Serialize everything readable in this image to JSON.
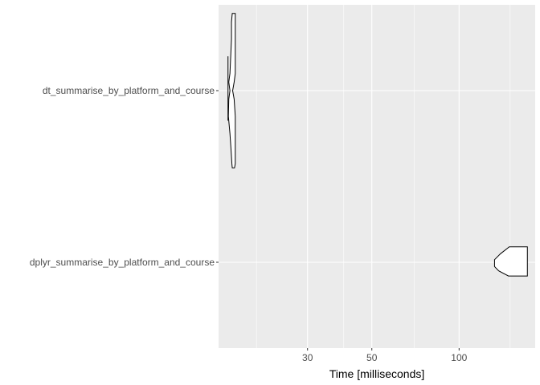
{
  "chart_data": {
    "type": "violin",
    "orientation": "horizontal",
    "title": "",
    "xlabel": "Time [milliseconds]",
    "ylabel": "",
    "x_scale": "log10",
    "x_range": [
      14.8,
      183
    ],
    "x_ticks": [
      30,
      50,
      100
    ],
    "x_ticklabels": [
      "30",
      "50",
      "100"
    ],
    "x_minor_ticks": [
      20,
      40,
      70,
      150
    ],
    "grid": true,
    "legend": "none",
    "panel_background": "#ebebeb",
    "gridline_color": "#ffffff",
    "outline_color": "#000000",
    "categories": [
      "dplyr_summarise_by_platform_and_course",
      "dt_summarise_by_platform_and_course"
    ],
    "series": [
      {
        "category": "dt_summarise_by_platform_and_course",
        "profile": [
          {
            "offset": -0.9,
            "min": 16.5,
            "max": 16.9
          },
          {
            "offset": -0.8,
            "min": 16.4,
            "max": 16.9
          },
          {
            "offset": -0.6,
            "min": 16.4,
            "max": 16.9
          },
          {
            "offset": -0.4,
            "min": 16.3,
            "max": 16.9
          },
          {
            "offset": -0.2,
            "min": 16.2,
            "max": 16.9
          },
          {
            "offset": -0.1,
            "min": 16.05,
            "max": 16.75
          },
          {
            "offset": 0.0,
            "min": 16.2,
            "max": 16.55
          },
          {
            "offset": 0.1,
            "min": 16.05,
            "max": 16.75
          },
          {
            "offset": 0.3,
            "min": 16.0,
            "max": 16.9
          },
          {
            "offset": 0.5,
            "min": 16.2,
            "max": 16.9
          },
          {
            "offset": 0.7,
            "min": 16.35,
            "max": 16.9
          },
          {
            "offset": 0.85,
            "min": 16.45,
            "max": 16.9
          },
          {
            "offset": 0.9,
            "min": 16.5,
            "max": 16.8
          }
        ],
        "outliers": [
          {
            "value": 15.95,
            "from": -0.4,
            "to": 0.35
          }
        ]
      },
      {
        "category": "dplyr_summarise_by_platform_and_course",
        "profile": [
          {
            "offset": -0.18,
            "min": 149,
            "max": 172
          },
          {
            "offset": -0.1,
            "min": 139,
            "max": 172
          },
          {
            "offset": -0.03,
            "min": 132.5,
            "max": 172
          },
          {
            "offset": 0.05,
            "min": 132.5,
            "max": 172
          },
          {
            "offset": 0.1,
            "min": 137,
            "max": 172
          },
          {
            "offset": 0.16,
            "min": 148,
            "max": 172
          }
        ],
        "outliers": []
      }
    ]
  }
}
